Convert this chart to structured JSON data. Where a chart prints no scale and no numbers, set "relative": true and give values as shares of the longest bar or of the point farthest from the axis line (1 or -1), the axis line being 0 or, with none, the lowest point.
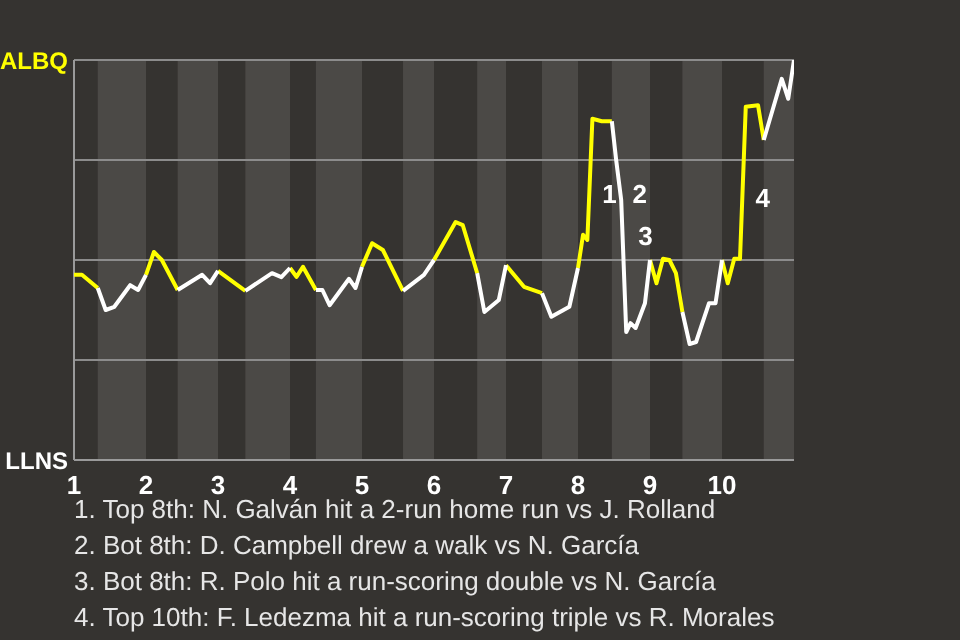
{
  "chart_data": {
    "type": "line",
    "relative": true,
    "xlim": [
      1,
      11
    ],
    "xticks": [
      1,
      2,
      3,
      4,
      5,
      6,
      7,
      8,
      9,
      10
    ],
    "legend": false,
    "marker": "none",
    "line_style": "solid",
    "x": [
      1,
      1.11,
      1.33,
      1.44,
      1.56,
      1.78,
      1.89,
      2,
      2.11,
      2.22,
      2.44,
      2.78,
      2.89,
      3,
      3,
      3.38,
      3.75,
      3.88,
      4,
      4.09,
      4.18,
      4.36,
      4.45,
      4.55,
      4.82,
      4.91,
      5,
      5.14,
      5.29,
      5.57,
      5.86,
      6,
      6.3,
      6.4,
      6.6,
      6.7,
      6.9,
      7,
      7.25,
      7.5,
      7.63,
      7.88,
      8,
      8.07,
      8.13,
      8.2,
      8.33,
      8.47,
      8.53,
      8.6,
      8.67,
      8.73,
      8.8,
      8.93,
      9,
      9.09,
      9.18,
      9.27,
      9.36,
      9.45,
      9.55,
      9.64,
      9.82,
      9.91,
      10,
      10.08,
      10.17,
      10.25,
      10.33,
      10.5,
      10.58,
      10.83,
      10.92,
      11
    ],
    "series": [
      {
        "color": "#ffff00",
        "values": [
          0.463,
          0.463,
          0.43,
          null,
          null,
          null,
          null,
          0.463,
          0.52,
          0.5,
          0.425,
          null,
          null,
          null,
          0.473,
          0.423,
          null,
          null,
          0.48,
          0.458,
          0.483,
          0.425,
          null,
          null,
          null,
          null,
          0.483,
          0.542,
          0.525,
          0.423,
          null,
          0.5,
          0.595,
          0.587,
          0.467,
          null,
          null,
          0.487,
          0.433,
          0.417,
          null,
          null,
          0.48,
          0.563,
          0.55,
          0.853,
          0.847,
          0.847,
          null,
          null,
          null,
          null,
          null,
          null,
          0.5,
          0.442,
          0.503,
          0.5,
          0.467,
          0.37,
          null,
          null,
          null,
          null,
          0.5,
          0.442,
          0.503,
          0.503,
          0.883,
          0.887,
          0.8,
          null,
          null,
          null
        ]
      },
      {
        "color": "#ffffff",
        "values": [
          null,
          null,
          0.43,
          0.375,
          0.383,
          0.437,
          0.425,
          0.463,
          null,
          null,
          0.425,
          0.463,
          0.442,
          0.473,
          null,
          0.423,
          0.467,
          0.457,
          0.48,
          null,
          null,
          0.425,
          0.425,
          0.387,
          0.453,
          0.43,
          0.483,
          null,
          null,
          0.423,
          0.463,
          0.5,
          null,
          null,
          0.467,
          0.37,
          0.4,
          0.487,
          null,
          0.417,
          0.358,
          0.383,
          0.48,
          null,
          null,
          null,
          null,
          0.847,
          0.75,
          0.65,
          0.32,
          0.342,
          0.33,
          0.392,
          0.5,
          null,
          null,
          null,
          null,
          0.37,
          0.29,
          0.295,
          0.392,
          0.392,
          0.5,
          null,
          null,
          null,
          null,
          null,
          0.8,
          0.953,
          0.903,
          1
        ]
      }
    ],
    "ref_lines": [
      {
        "axis": "y",
        "value": 0.25,
        "color": "#8c8c8c"
      },
      {
        "axis": "y",
        "value": 0.5,
        "color": "#8c8c8c"
      },
      {
        "axis": "y",
        "value": 0.75,
        "color": "#8c8c8c"
      },
      {
        "axis": "y",
        "value": 1,
        "color": "#8c8c8c"
      }
    ],
    "bands": [
      {
        "axis": "x",
        "from": 1.33,
        "to": 2,
        "color": "#4b4946"
      },
      {
        "axis": "x",
        "from": 2.44,
        "to": 3,
        "color": "#4b4946"
      },
      {
        "axis": "x",
        "from": 3.38,
        "to": 4,
        "color": "#4b4946"
      },
      {
        "axis": "x",
        "from": 4.36,
        "to": 5,
        "color": "#4b4946"
      },
      {
        "axis": "x",
        "from": 5.57,
        "to": 6,
        "color": "#4b4946"
      },
      {
        "axis": "x",
        "from": 6.6,
        "to": 7,
        "color": "#4b4946"
      },
      {
        "axis": "x",
        "from": 7.5,
        "to": 8,
        "color": "#4b4946"
      },
      {
        "axis": "x",
        "from": 8.47,
        "to": 9,
        "color": "#4b4946"
      },
      {
        "axis": "x",
        "from": 9.45,
        "to": 10,
        "color": "#4b4946"
      },
      {
        "axis": "x",
        "from": 10.58,
        "to": 11,
        "color": "#4b4946"
      }
    ],
    "annotations": [
      "ALBQ",
      "LLNS",
      {
        "text": "1",
        "x": 8.17,
        "y": 0.665
      },
      {
        "text": "2",
        "x": 8.59,
        "y": 0.665
      },
      {
        "text": "3",
        "x": 8.67,
        "y": 0.56
      },
      {
        "text": "4",
        "x": 10.3,
        "y": 0.655
      },
      "1. Top 8th: N. Galván hit a 2-run home run vs J. Rolland",
      "2. Bot 8th: D. Campbell drew a walk vs N. García",
      "3. Bot 8th: R. Polo hit a run-scoring double vs N. García",
      "4. Top 10th: F. Ledezma hit a run-scoring triple vs R. Morales"
    ]
  }
}
